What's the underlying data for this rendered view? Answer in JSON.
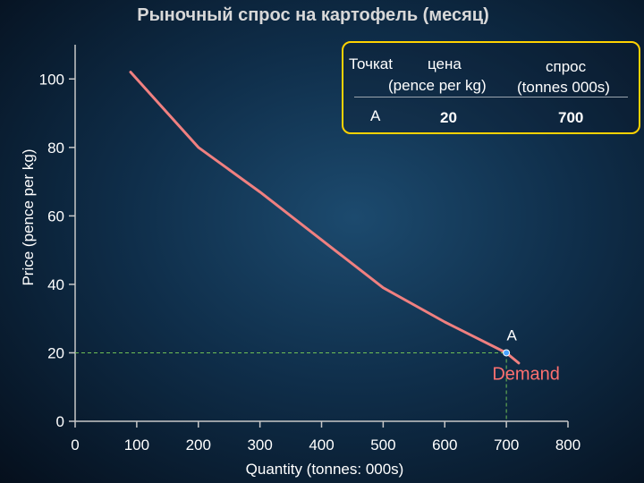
{
  "title": "Рыночный спрос на картофель (месяц)",
  "chart_data": {
    "type": "line",
    "xlabel": "Quantity (tonnes: 000s)",
    "ylabel": "Price (pence per kg)",
    "xlim": [
      0,
      800
    ],
    "ylim": [
      0,
      110
    ],
    "x_ticks": [
      0,
      100,
      200,
      300,
      400,
      500,
      600,
      700,
      800
    ],
    "y_ticks": [
      0,
      20,
      40,
      60,
      80,
      100
    ],
    "series": [
      {
        "name": "Demand",
        "color": "#f08080",
        "points": [
          [
            90,
            102
          ],
          [
            200,
            80
          ],
          [
            300,
            67
          ],
          [
            400,
            53
          ],
          [
            500,
            39
          ],
          [
            600,
            29
          ],
          [
            700,
            20
          ],
          [
            720,
            17
          ]
        ]
      }
    ],
    "marker": {
      "label": "A",
      "x": 700,
      "y": 20,
      "color": "#4aa3ff"
    },
    "guide_color": "#6fbf55",
    "curve_label_color": "#ff7070"
  },
  "table": {
    "headers": [
      "Точкаt",
      "цена",
      "спрос"
    ],
    "units": [
      "(pence per kg)",
      "(tonnes 000s)"
    ],
    "row": [
      "A",
      "20",
      "700"
    ],
    "border_color": "#ffd200"
  }
}
